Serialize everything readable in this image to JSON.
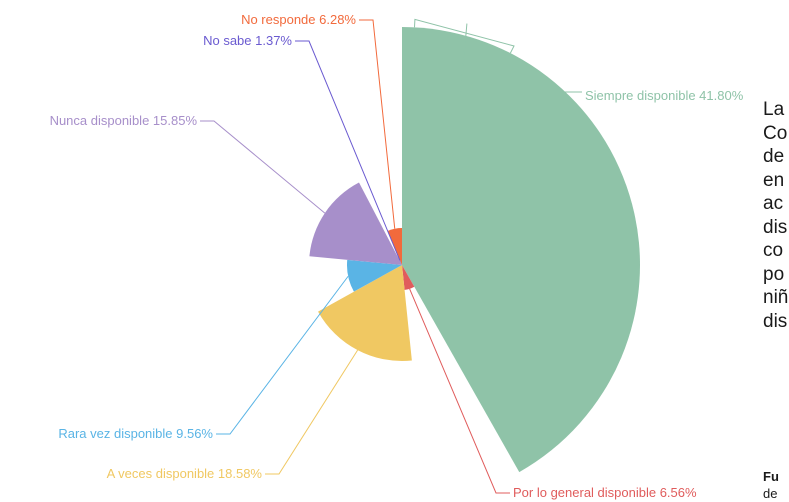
{
  "chart_data": {
    "type": "pie",
    "variant": "nightingale-rose",
    "slices": [
      {
        "label": "Siempre disponible",
        "value": 41.8,
        "display": "Siempre disponible 41.80%",
        "color": "#8fc3a8"
      },
      {
        "label": "Por lo general disponible",
        "value": 6.56,
        "display": "Por lo general disponible 6.56%",
        "color": "#e05c5c"
      },
      {
        "label": "A veces disponible",
        "value": 18.58,
        "display": "A veces disponible 18.58%",
        "color": "#f0c862"
      },
      {
        "label": "Rara vez disponible",
        "value": 9.56,
        "display": "Rara vez disponible 9.56%",
        "color": "#5ab4e5"
      },
      {
        "label": "Nunca disponible",
        "value": 15.85,
        "display": "Nunca disponible 15.85%",
        "color": "#a78fca"
      },
      {
        "label": "No sabe",
        "value": 1.37,
        "display": "No sabe 1.37%",
        "color": "#6a5ad0"
      },
      {
        "label": "No responde",
        "value": 6.28,
        "display": "No responde 6.28%",
        "color": "#f26a3c"
      }
    ]
  },
  "side_text": {
    "lines": [
      "La",
      "Co",
      "de",
      "en",
      "ac",
      "dis",
      "co",
      "po",
      "niñ",
      "dis"
    ],
    "source_label": "Fu",
    "source_text": "de"
  }
}
